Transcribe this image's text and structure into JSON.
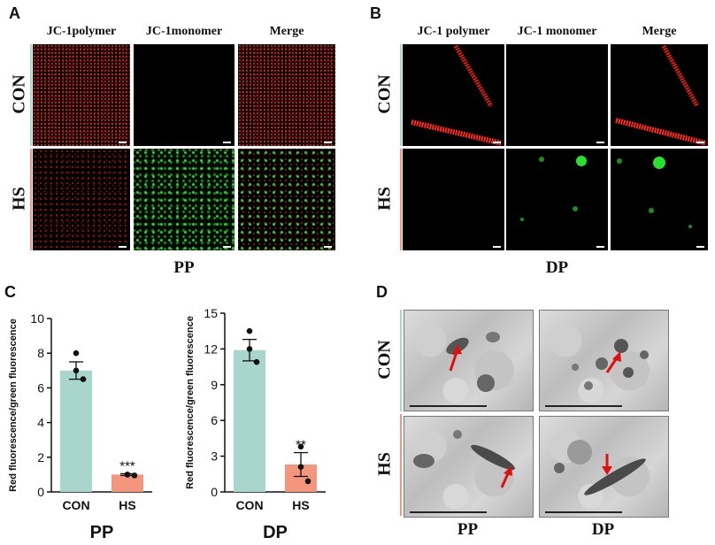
{
  "panels": {
    "A": {
      "letter": "A",
      "columns": [
        "JC-1polymer",
        "JC-1monomer",
        "Merge"
      ],
      "rows": [
        "CON",
        "HS"
      ],
      "caption": "PP"
    },
    "B": {
      "letter": "B",
      "columns": [
        "JC-1 polymer",
        "JC-1 monomer",
        "Merge"
      ],
      "rows": [
        "CON",
        "HS"
      ],
      "caption": "DP"
    },
    "C": {
      "letter": "C"
    },
    "D": {
      "letter": "D",
      "rows": [
        "CON",
        "HS"
      ],
      "captions": [
        "PP",
        "DP"
      ]
    }
  },
  "colors": {
    "con_bar": "#a8d5cc",
    "hs_bar": "#f4957e",
    "con_rowbar": "#a8d5cc",
    "hs_rowbar": "#f4957e",
    "red_signal": "#ff2a1a",
    "green_signal": "#29e02e",
    "arrow": "#e01010"
  },
  "chart_data": [
    {
      "type": "bar",
      "title": "PP",
      "categories": [
        "CON",
        "HS"
      ],
      "values": [
        7.0,
        1.0
      ],
      "errors": [
        0.5,
        0.05
      ],
      "points": [
        [
          8.0,
          7.0,
          6.5
        ],
        [
          1.0,
          1.0,
          0.95
        ]
      ],
      "significance": [
        "",
        "***"
      ],
      "ylabel": "Red fluorescence/green fluorescence",
      "ylim": [
        0,
        10
      ],
      "yticks": [
        0,
        2,
        4,
        6,
        8,
        10
      ]
    },
    {
      "type": "bar",
      "title": "DP",
      "categories": [
        "CON",
        "HS"
      ],
      "values": [
        11.9,
        2.3
      ],
      "errors": [
        0.9,
        1.0
      ],
      "points": [
        [
          13.5,
          12.0,
          10.9
        ],
        [
          3.8,
          2.1,
          0.9
        ]
      ],
      "significance": [
        "",
        "**"
      ],
      "ylabel": "Red fluorescence/green fluorescence",
      "ylim": [
        0,
        15
      ],
      "yticks": [
        0,
        3,
        6,
        9,
        12,
        15
      ]
    }
  ]
}
